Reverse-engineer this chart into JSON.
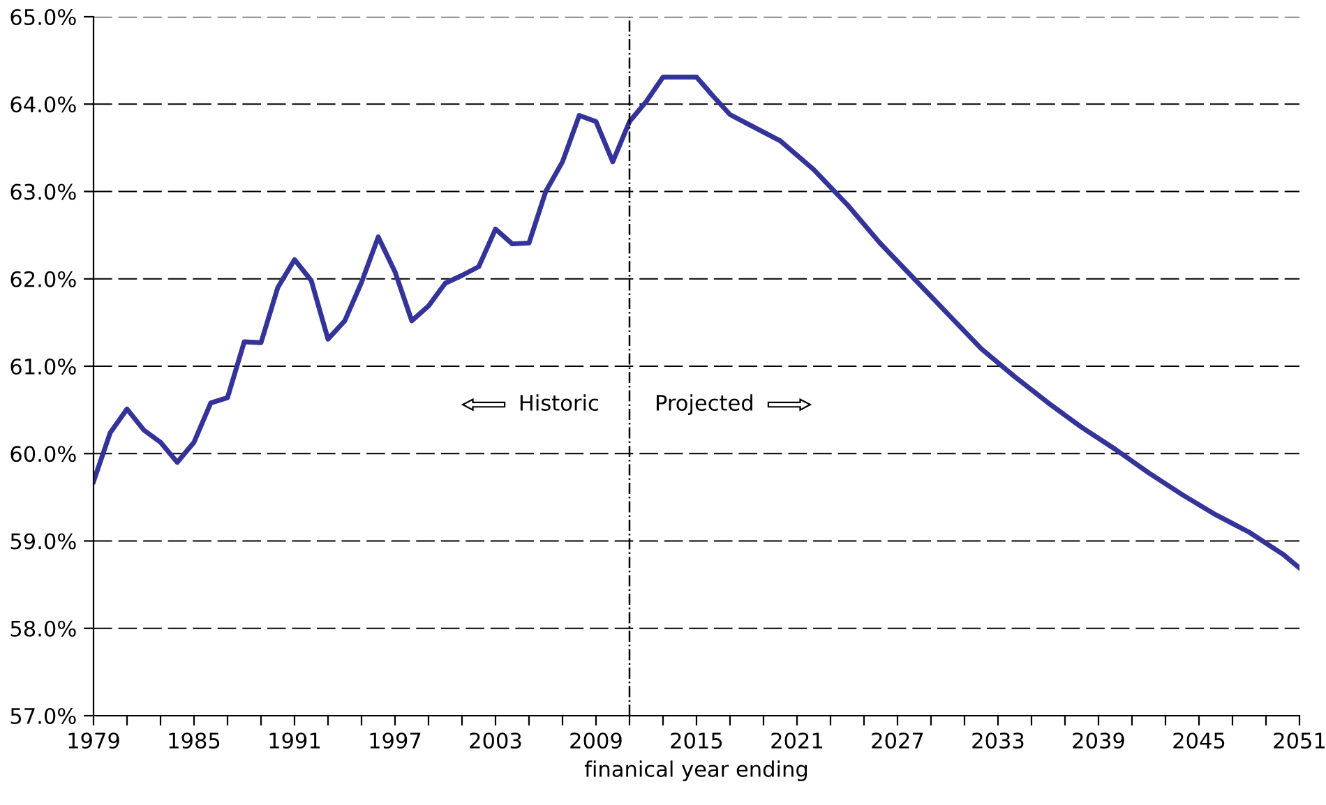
{
  "chart_data": {
    "type": "line",
    "xlabel": "finanical year ending",
    "x": [
      1979,
      1980,
      1981,
      1982,
      1983,
      1984,
      1985,
      1986,
      1987,
      1988,
      1989,
      1990,
      1991,
      1992,
      1993,
      1994,
      1995,
      1996,
      1997,
      1998,
      1999,
      2000,
      2001,
      2002,
      2003,
      2004,
      2005,
      2006,
      2007,
      2008,
      2009,
      2010,
      2011,
      2012,
      2013,
      2014,
      2015,
      2016,
      2017,
      2018,
      2020,
      2022,
      2024,
      2026,
      2028,
      2030,
      2032,
      2034,
      2036,
      2038,
      2040,
      2042,
      2044,
      2046,
      2048,
      2050,
      2051
    ],
    "series": [
      {
        "color": "#333399",
        "values": [
          59.68,
          60.24,
          60.51,
          60.27,
          60.13,
          59.9,
          60.13,
          60.58,
          60.64,
          61.28,
          61.27,
          61.9,
          62.22,
          61.98,
          61.31,
          61.52,
          61.96,
          62.48,
          62.08,
          61.52,
          61.69,
          61.95,
          62.04,
          62.14,
          62.57,
          62.4,
          62.41,
          63.0,
          63.34,
          63.87,
          63.8,
          63.34,
          63.8,
          64.03,
          64.31,
          64.31,
          64.31,
          64.09,
          63.88,
          63.78,
          63.58,
          63.25,
          62.85,
          62.4,
          62.0,
          61.6,
          61.2,
          60.88,
          60.58,
          60.3,
          60.05,
          59.78,
          59.53,
          59.3,
          59.1,
          58.85,
          58.69
        ]
      }
    ],
    "xlim": [
      1979,
      2051
    ],
    "xticks": [
      1979,
      {
        "value": 1981,
        "label": null
      },
      {
        "value": 1983,
        "label": null
      },
      1985,
      {
        "value": 1987,
        "label": null
      },
      {
        "value": 1989,
        "label": null
      },
      1991,
      {
        "value": 1993,
        "label": null
      },
      {
        "value": 1995,
        "label": null
      },
      1997,
      {
        "value": 1999,
        "label": null
      },
      {
        "value": 2001,
        "label": null
      },
      2003,
      {
        "value": 2005,
        "label": null
      },
      {
        "value": 2007,
        "label": null
      },
      2009,
      {
        "value": 2011,
        "label": null
      },
      {
        "value": 2013,
        "label": null
      },
      2015,
      {
        "value": 2017,
        "label": null
      },
      {
        "value": 2019,
        "label": null
      },
      2021,
      {
        "value": 2023,
        "label": null
      },
      {
        "value": 2025,
        "label": null
      },
      2027,
      {
        "value": 2029,
        "label": null
      },
      {
        "value": 2031,
        "label": null
      },
      2033,
      {
        "value": 2035,
        "label": null
      },
      {
        "value": 2037,
        "label": null
      },
      2039,
      {
        "value": 2041,
        "label": null
      },
      {
        "value": 2043,
        "label": null
      },
      2045,
      {
        "value": 2047,
        "label": null
      },
      {
        "value": 2049,
        "label": null
      },
      2051
    ],
    "ylim": [
      57,
      65
    ],
    "yticks": [
      {
        "value": 57,
        "label": "57.0%"
      },
      {
        "value": 58,
        "label": "58.0%"
      },
      {
        "value": 59,
        "label": "59.0%"
      },
      {
        "value": 60,
        "label": "60.0%"
      },
      {
        "value": 61,
        "label": "61.0%"
      },
      {
        "value": 62,
        "label": "62.0%"
      },
      {
        "value": 63,
        "label": "63.0%"
      },
      {
        "value": 64,
        "label": "64.0%"
      },
      {
        "value": 65,
        "label": "65.0%"
      }
    ],
    "grid": "y",
    "line_style": "solid",
    "marker": "none",
    "ref_lines": [
      {
        "axis": "x",
        "value": 2011,
        "line_style": "dashdot",
        "color": "#000000"
      }
    ],
    "annotations": [
      "Historic",
      "Projected"
    ]
  }
}
